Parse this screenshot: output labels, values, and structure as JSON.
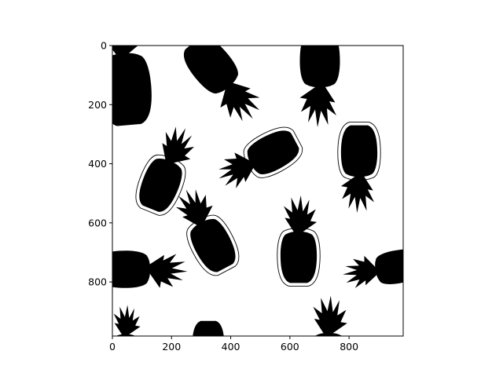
{
  "chart_data": {
    "type": "image",
    "title": "",
    "xlabel": "",
    "ylabel": "",
    "xlim": [
      0,
      983
    ],
    "ylim": [
      983,
      0
    ],
    "x_ticks": [
      0,
      200,
      400,
      600,
      800
    ],
    "y_ticks": [
      0,
      200,
      400,
      600,
      800
    ],
    "x_tick_labels": [
      "0",
      "200",
      "400",
      "600",
      "800"
    ],
    "y_tick_labels": [
      "0",
      "200",
      "400",
      "600",
      "800"
    ],
    "grid": false,
    "colormap": "binary",
    "content": "black pineapple silhouettes on white background, some outlined"
  }
}
